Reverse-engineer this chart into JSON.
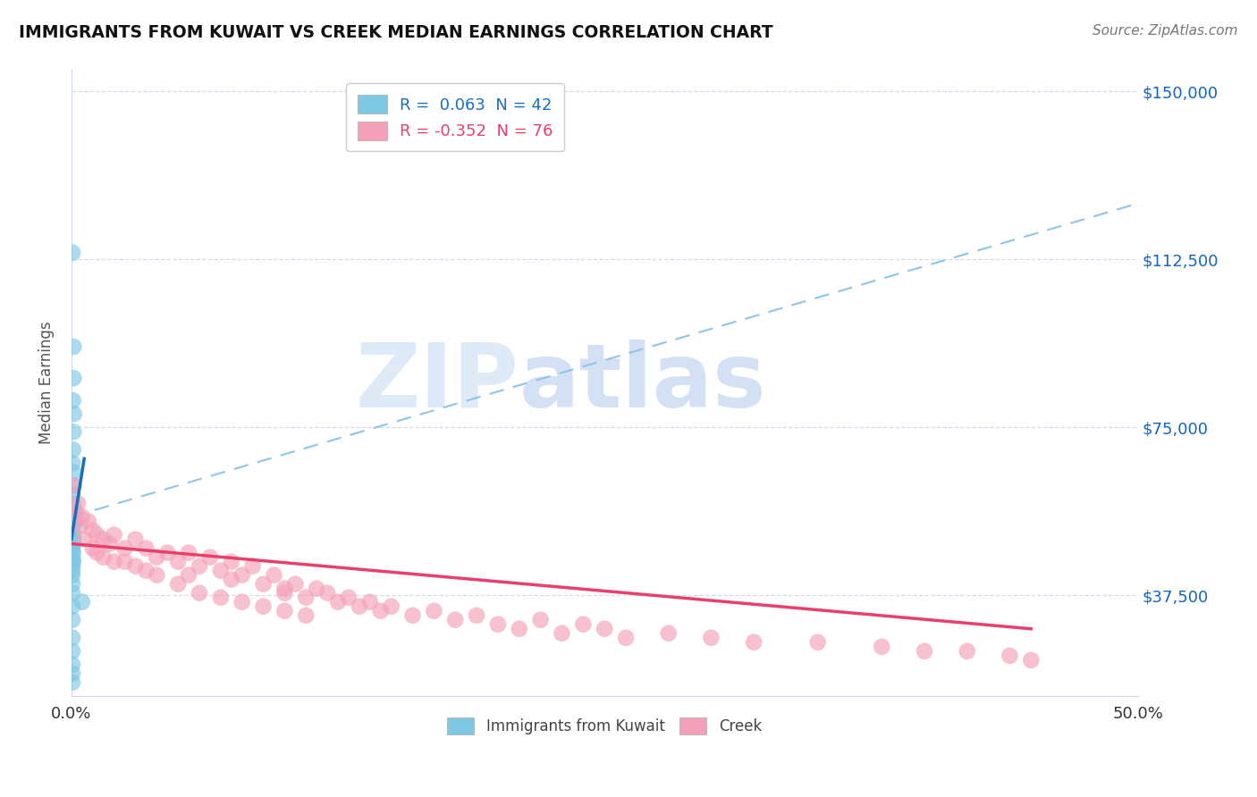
{
  "title": "IMMIGRANTS FROM KUWAIT VS CREEK MEDIAN EARNINGS CORRELATION CHART",
  "source": "Source: ZipAtlas.com",
  "ylabel": "Median Earnings",
  "ytick_labels": [
    "$37,500",
    "$75,000",
    "$112,500",
    "$150,000"
  ],
  "ytick_values": [
    37500,
    75000,
    112500,
    150000
  ],
  "xlim": [
    0.0,
    50.0
  ],
  "ylim": [
    15000,
    155000
  ],
  "watermark_zip": "ZIP",
  "watermark_atlas": "atlas",
  "legend_row1": "R =  0.063  N = 42",
  "legend_row2": "R = -0.352  N = 76",
  "blue_color": "#7ec8e3",
  "pink_color": "#f4a0b8",
  "blue_line_color": "#1a6fba",
  "blue_dashed_color": "#90c4e8",
  "pink_line_color": "#e8406c",
  "background_color": "#ffffff",
  "grid_color": "#d0d8e8",
  "blue_scatter_x": [
    0.05,
    0.1,
    0.1,
    0.08,
    0.12,
    0.1,
    0.08,
    0.05,
    0.1,
    0.1,
    0.05,
    0.08,
    0.1,
    0.08,
    0.1,
    0.08,
    0.05,
    0.08,
    0.1,
    0.08,
    0.05,
    0.08,
    0.05,
    0.08,
    0.05,
    0.05,
    0.05,
    0.05,
    0.05,
    0.05,
    0.05,
    0.05,
    0.05,
    0.05,
    0.05,
    0.05,
    0.5,
    0.05,
    0.05,
    0.05,
    0.05,
    0.05
  ],
  "blue_scatter_y": [
    114000,
    93000,
    86000,
    81000,
    78000,
    74000,
    70000,
    67000,
    65000,
    62000,
    60000,
    58000,
    56000,
    55000,
    54000,
    53000,
    52000,
    51000,
    50000,
    49000,
    48000,
    47000,
    46000,
    45000,
    44000,
    43000,
    42000,
    40000,
    38000,
    35000,
    32000,
    28000,
    25000,
    22000,
    20000,
    18000,
    36000,
    55000,
    53000,
    50000,
    48000,
    45000
  ],
  "pink_scatter_x": [
    0.1,
    0.3,
    0.5,
    0.8,
    1.0,
    1.2,
    1.5,
    1.8,
    2.0,
    2.5,
    3.0,
    3.5,
    4.0,
    4.5,
    5.0,
    5.5,
    6.0,
    6.5,
    7.0,
    7.5,
    8.0,
    8.5,
    9.0,
    9.5,
    10.0,
    10.5,
    11.0,
    11.5,
    12.0,
    12.5,
    13.0,
    13.5,
    14.0,
    14.5,
    15.0,
    16.0,
    17.0,
    18.0,
    19.0,
    20.0,
    21.0,
    22.0,
    23.0,
    24.0,
    25.0,
    26.0,
    28.0,
    30.0,
    32.0,
    35.0,
    38.0,
    40.0,
    42.0,
    44.0,
    45.0,
    1.0,
    1.5,
    2.0,
    3.0,
    4.0,
    5.0,
    6.0,
    7.0,
    8.0,
    9.0,
    10.0,
    11.0,
    0.2,
    0.4,
    0.6,
    1.2,
    2.5,
    3.5,
    5.5,
    7.5,
    10.0
  ],
  "pink_scatter_y": [
    62000,
    58000,
    55000,
    54000,
    52000,
    51000,
    50000,
    49000,
    51000,
    48000,
    50000,
    48000,
    46000,
    47000,
    45000,
    47000,
    44000,
    46000,
    43000,
    45000,
    42000,
    44000,
    40000,
    42000,
    38000,
    40000,
    37000,
    39000,
    38000,
    36000,
    37000,
    35000,
    36000,
    34000,
    35000,
    33000,
    34000,
    32000,
    33000,
    31000,
    30000,
    32000,
    29000,
    31000,
    30000,
    28000,
    29000,
    28000,
    27000,
    27000,
    26000,
    25000,
    25000,
    24000,
    23000,
    48000,
    46000,
    45000,
    44000,
    42000,
    40000,
    38000,
    37000,
    36000,
    35000,
    34000,
    33000,
    56000,
    53000,
    50000,
    47000,
    45000,
    43000,
    42000,
    41000,
    39000
  ]
}
